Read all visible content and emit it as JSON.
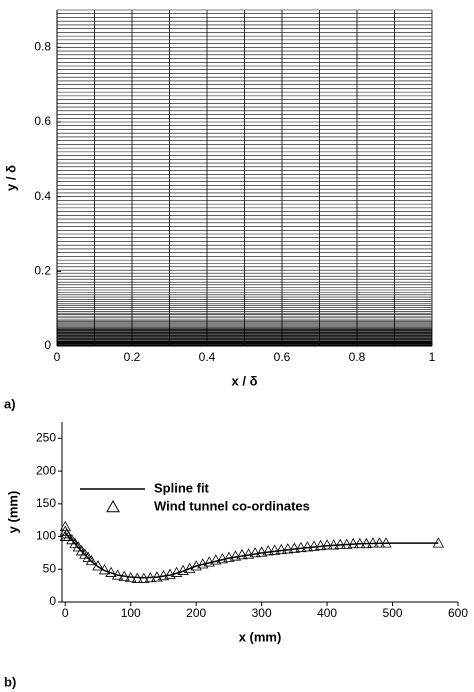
{
  "chart_data": [
    {
      "type": "mesh",
      "panel_label": "a)",
      "xlabel": "x / δ",
      "ylabel": "y / δ",
      "xlim": [
        0,
        1
      ],
      "ylim": [
        0,
        0.9
      ],
      "xticks": [
        0,
        0.2,
        0.4,
        0.6,
        0.8,
        1
      ],
      "yticks": [
        0,
        0.2,
        0.4,
        0.6,
        0.8
      ],
      "color": "#000000",
      "mesh_x": [
        0,
        0.1,
        0.2,
        0.3,
        0.4,
        0.5,
        0.6,
        0.7,
        0.8,
        0.9,
        1
      ],
      "mesh_y": [
        0,
        0.001,
        0.002,
        0.003,
        0.004,
        0.005,
        0.006,
        0.007,
        0.008,
        0.009,
        0.01,
        0.011,
        0.012,
        0.013,
        0.015,
        0.017,
        0.019,
        0.021,
        0.023,
        0.025,
        0.027,
        0.029,
        0.031,
        0.033,
        0.035,
        0.037,
        0.039,
        0.041,
        0.043,
        0.045,
        0.047,
        0.05,
        0.053,
        0.056,
        0.059,
        0.062,
        0.065,
        0.068,
        0.072,
        0.076,
        0.08,
        0.084,
        0.088,
        0.093,
        0.098,
        0.103,
        0.108,
        0.113,
        0.119,
        0.125,
        0.131,
        0.137,
        0.143,
        0.15,
        0.157,
        0.164,
        0.171,
        0.179,
        0.187,
        0.195,
        0.203,
        0.212,
        0.221,
        0.23,
        0.24,
        0.25,
        0.26,
        0.27,
        0.28,
        0.29,
        0.3,
        0.31,
        0.32,
        0.33,
        0.34,
        0.35,
        0.36,
        0.37,
        0.38,
        0.39,
        0.4,
        0.41,
        0.42,
        0.43,
        0.44,
        0.45,
        0.46,
        0.47,
        0.48,
        0.49,
        0.5,
        0.51,
        0.52,
        0.53,
        0.54,
        0.55,
        0.56,
        0.57,
        0.58,
        0.59,
        0.6,
        0.61,
        0.62,
        0.63,
        0.64,
        0.65,
        0.66,
        0.67,
        0.68,
        0.69,
        0.7,
        0.71,
        0.72,
        0.73,
        0.74,
        0.75,
        0.76,
        0.77,
        0.78,
        0.79,
        0.8,
        0.81,
        0.82,
        0.83,
        0.84,
        0.85,
        0.86,
        0.87,
        0.88,
        0.89,
        0.9
      ]
    },
    {
      "type": "line",
      "panel_label": "b)",
      "xlabel": "x (mm)",
      "ylabel": "y (mm)",
      "xlim": [
        -5,
        600
      ],
      "ylim": [
        0,
        275
      ],
      "xticks": [
        0,
        100,
        200,
        300,
        400,
        500,
        600
      ],
      "yticks": [
        0,
        50,
        100,
        150,
        200,
        250
      ],
      "legend": "upper left",
      "series": [
        {
          "name": "Spline fit",
          "kind": "line",
          "color": "#000000",
          "x": [
            0,
            10,
            20,
            30,
            40,
            50,
            60,
            80,
            100,
            120,
            140,
            160,
            180,
            200,
            250,
            300,
            350,
            400,
            450,
            500,
            570
          ],
          "values": [
            105,
            95,
            83,
            72,
            62,
            54,
            48,
            41,
            38,
            37,
            38,
            41,
            47,
            55,
            67,
            75,
            81,
            86,
            89,
            90,
            90
          ]
        },
        {
          "name": "Wind tunnel co-ordinates",
          "kind": "scatter",
          "marker": "triangle",
          "color": "#000000",
          "x": [
            0,
            0,
            0,
            2,
            5,
            10,
            15,
            20,
            25,
            30,
            35,
            40,
            50,
            60,
            70,
            80,
            90,
            100,
            110,
            120,
            130,
            140,
            150,
            160,
            170,
            180,
            190,
            200,
            210,
            220,
            230,
            240,
            250,
            260,
            270,
            280,
            290,
            300,
            310,
            320,
            330,
            340,
            350,
            360,
            370,
            380,
            390,
            400,
            410,
            420,
            430,
            440,
            450,
            460,
            470,
            480,
            490,
            570
          ],
          "values": [
            115,
            108,
            100,
            104,
            100,
            95,
            89,
            84,
            78,
            73,
            68,
            63,
            55,
            49,
            45,
            41,
            39,
            37,
            36,
            36,
            37,
            38,
            40,
            42,
            45,
            48,
            51,
            55,
            58,
            61,
            64,
            66,
            68,
            70,
            72,
            73,
            75,
            76,
            78,
            79,
            80,
            81,
            82,
            83,
            84,
            85,
            86,
            87,
            87,
            88,
            88,
            89,
            89,
            89,
            90,
            90,
            90,
            90
          ]
        }
      ]
    }
  ]
}
